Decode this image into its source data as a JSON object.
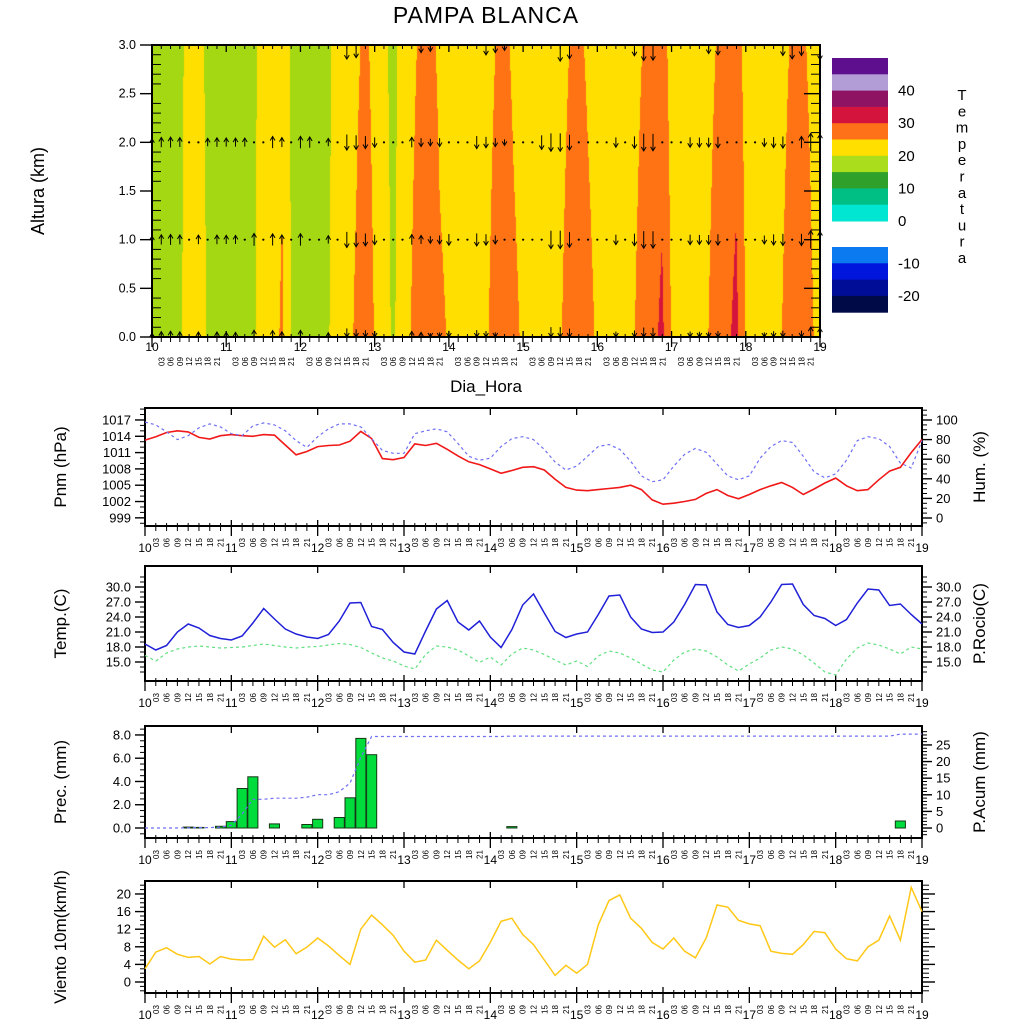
{
  "title": "PAMPA BLANCA",
  "x_axis": {
    "label": "Dia_Hora",
    "days": [
      "10",
      "11",
      "12",
      "13",
      "14",
      "15",
      "16",
      "17",
      "18",
      "19"
    ],
    "hours": [
      "03",
      "06",
      "09",
      "12",
      "15",
      "18",
      "21"
    ],
    "hour_color": "#a53535"
  },
  "colorbar": {
    "title": "Temperatura",
    "labels": [
      "40",
      "30",
      "20",
      "10",
      "0",
      "-10",
      "-20"
    ],
    "colors_upper": [
      "#5e0f8e",
      "#b39dd6",
      "#8e1363",
      "#d4143c",
      "#ff7119",
      "#ffdf00",
      "#aadd1c",
      "#2fa12b",
      "#00bf84",
      "#00e6d2"
    ],
    "colors_lower": [
      "#0b79f0",
      "#0016dc",
      "#000d96",
      "#000a46"
    ]
  },
  "chart_data": [
    {
      "id": "contour",
      "type": "heatmap",
      "ylabel": "Altura (km)",
      "xlabel": "Dia_Hora",
      "xlim": [
        10,
        19
      ],
      "ylim": [
        0,
        3
      ],
      "yticks": [
        "0.0",
        "0.5",
        "1.0",
        "1.5",
        "2.0",
        "2.5",
        "3.0"
      ],
      "levels": [
        15,
        20,
        25,
        30
      ],
      "band_colors": {
        "below": "#2fa12b",
        "green": "#a4d813",
        "yellow": "#ffdf00",
        "orange": "#ff7314",
        "red": "#d4143c"
      },
      "surface_temp": [
        18.0,
        17.2,
        18.0,
        19.5,
        22.0,
        21.5,
        19.6,
        18.4,
        18.2,
        17.6,
        18.4,
        19.7,
        22.3,
        23.0,
        25.9,
        19.5,
        18.3,
        17.7,
        18.6,
        19.8,
        21.8,
        23.0,
        26.0,
        29.5,
        24.5,
        21.0,
        19.6,
        21.5,
        25.5,
        29.3,
        29.6,
        26.0,
        24.6,
        22.5,
        22.0,
        22.8,
        24.0,
        27.5,
        29.2,
        26.2,
        24.3,
        22.6,
        22.2,
        23.0,
        24.4,
        27.6,
        29.0,
        26.5,
        24.4,
        22.8,
        22.4,
        23.2,
        24.8,
        28.0,
        28.5,
        31.2,
        24.8,
        23.0,
        22.6,
        23.4,
        25.0,
        28.2,
        28.8,
        31.5,
        25.0,
        23.2,
        22.8,
        23.6,
        25.2,
        28.4,
        29.4,
        26.2,
        23.0
      ],
      "wind_dir_z1": [
        "uuuu.u.u",
        "uu.u.uu.",
        "u..u.ddd",
        "d...uudd",
        "d..ddd..",
        "...ddd..",
        "..d.ddd.",
        "..dddd..",
        "..ddd.du",
        "u"
      ],
      "wind_dir_z2": [
        "uuuu..uu",
        "uuu..uu.",
        "uu.u.ddd",
        "d...uddd",
        "...dddd.",
        "..dddd..",
        "..d.ddd.",
        "..dddd..",
        "..ddd.uu",
        "u"
      ],
      "wind_dir_z3": [
        "........",
        "........",
        ".....dd.",
        ".....dd.",
        "....ddd.",
        "....dd..",
        "....ddd.",
        "....dd..",
        "....ddd.",
        "d"
      ]
    },
    {
      "id": "pressure_humidity",
      "type": "line",
      "x0": 10,
      "dx": 0.125,
      "left": {
        "label": "Pnm (hPa)",
        "label_color": "#ff0000",
        "ticks": [
          "1017",
          "1014",
          "1011",
          "1008",
          "1005",
          "1002",
          "999"
        ],
        "minor": 1,
        "ylim": [
          997.5,
          1019.2
        ],
        "labels": true
      },
      "right": {
        "label": "Hum. (%)",
        "label_color": "#0000ff",
        "ticks": [
          "100",
          "80",
          "60",
          "40",
          "20",
          "0"
        ],
        "minor": 5,
        "ylim": [
          -8.16,
          112.24
        ],
        "labels": true
      },
      "series": [
        {
          "name": "Pnm (hPa)",
          "axis": "left",
          "color": "#f01818",
          "dash": null,
          "width": 1.6,
          "values": [
            1013.3,
            1013.9,
            1014.7,
            1015.0,
            1014.8,
            1013.8,
            1013.5,
            1014.1,
            1014.3,
            1014.1,
            1014.0,
            1014.3,
            1014.2,
            1012.4,
            1010.6,
            1011.2,
            1012.1,
            1012.3,
            1012.4,
            1013.1,
            1014.9,
            1013.6,
            1009.9,
            1009.7,
            1010.1,
            1012.6,
            1012.3,
            1012.7,
            1011.6,
            1010.4,
            1009.3,
            1008.8,
            1008.0,
            1007.2,
            1007.7,
            1008.3,
            1008.4,
            1007.8,
            1006.1,
            1004.6,
            1004.1,
            1004.0,
            1004.2,
            1004.4,
            1004.6,
            1005.0,
            1004.2,
            1002.3,
            1001.5,
            1001.7,
            1002.0,
            1002.4,
            1003.5,
            1004.2,
            1003.1,
            1002.5,
            1003.3,
            1004.2,
            1004.9,
            1005.5,
            1004.6,
            1003.3,
            1004.3,
            1005.4,
            1006.3,
            1004.9,
            1004.0,
            1004.2,
            1006.0,
            1007.6,
            1008.3,
            1011.0,
            1013.4
          ]
        },
        {
          "name": "Hum. (%)",
          "axis": "right",
          "color": "#7070f5",
          "dash": "3 3",
          "width": 1.2,
          "values": [
            98,
            95,
            88,
            80,
            84,
            92,
            96,
            93,
            86,
            84,
            94,
            97,
            95,
            89,
            79,
            72,
            83,
            91,
            96,
            96,
            93,
            81,
            69,
            66,
            66,
            86,
            89,
            91,
            88,
            76,
            63,
            59,
            61,
            73,
            81,
            83,
            80,
            70,
            57,
            49,
            53,
            63,
            73,
            75,
            70,
            58,
            43,
            37,
            39,
            53,
            65,
            71,
            67,
            55,
            43,
            39,
            43,
            61,
            73,
            79,
            77,
            63,
            47,
            41,
            45,
            59,
            79,
            83,
            81,
            73,
            56,
            51,
            79
          ]
        }
      ]
    },
    {
      "id": "temp_dewpoint",
      "type": "line",
      "x0": 10,
      "dx": 0.125,
      "left": {
        "label": "Temp.(C)",
        "label_color": "#0000ff",
        "ticks": [
          "30.0",
          "27.0",
          "24.0",
          "21.0",
          "18.0",
          "15.0"
        ],
        "minor": 1,
        "ylim": [
          11.2,
          34.2
        ],
        "labels": true
      },
      "right": {
        "label": "P.Rocio(C)",
        "label_color": "#00dd00",
        "ticks": [
          "30.0",
          "27.0",
          "24.0",
          "21.0",
          "18.0",
          "15.0"
        ],
        "minor": 1,
        "ylim": [
          11.2,
          34.2
        ],
        "labels": true
      },
      "series": [
        {
          "name": "Temp.(C)",
          "axis": "left",
          "color": "#2020d8",
          "dash": null,
          "width": 1.5,
          "values": [
            18.6,
            17.4,
            18.3,
            21.0,
            22.6,
            21.8,
            20.3,
            19.7,
            19.4,
            20.2,
            22.8,
            25.7,
            23.6,
            21.6,
            20.6,
            20.0,
            19.7,
            20.5,
            23.2,
            26.8,
            26.9,
            22.1,
            21.5,
            18.9,
            17.0,
            16.6,
            21.2,
            25.6,
            27.3,
            23.0,
            21.4,
            23.2,
            20.0,
            17.9,
            21.5,
            26.4,
            28.6,
            24.8,
            21.1,
            19.9,
            20.6,
            21.0,
            24.5,
            28.2,
            28.4,
            24.0,
            21.6,
            20.9,
            21.0,
            23.0,
            26.5,
            30.5,
            30.4,
            25.0,
            22.5,
            21.9,
            22.3,
            24.0,
            27.0,
            30.5,
            30.6,
            26.5,
            24.3,
            23.7,
            22.3,
            23.5,
            26.8,
            29.6,
            29.4,
            26.3,
            26.6,
            24.5,
            22.6
          ]
        },
        {
          "name": "P.Rocio(C)",
          "axis": "right",
          "color": "#60e080",
          "dash": "3 3",
          "width": 1.2,
          "values": [
            16.3,
            15.2,
            16.8,
            17.6,
            18.0,
            18.2,
            18.0,
            17.8,
            17.9,
            18.0,
            18.3,
            18.6,
            18.3,
            18.0,
            17.8,
            18.0,
            18.1,
            18.4,
            18.7,
            18.5,
            17.9,
            16.8,
            15.8,
            15.2,
            14.2,
            13.6,
            16.5,
            18.2,
            18.0,
            17.4,
            16.2,
            14.9,
            16.0,
            14.4,
            16.6,
            17.8,
            17.4,
            16.5,
            15.4,
            14.4,
            15.2,
            14.1,
            16.2,
            17.2,
            16.8,
            15.8,
            14.6,
            13.4,
            13.0,
            15.4,
            17.0,
            17.6,
            17.2,
            16.0,
            14.4,
            13.2,
            14.6,
            15.8,
            17.4,
            18.0,
            17.6,
            16.4,
            14.8,
            13.0,
            12.4,
            15.6,
            17.8,
            18.8,
            18.4,
            17.6,
            16.6,
            18.0,
            17.6
          ]
        }
      ]
    },
    {
      "id": "precipitation",
      "type": "bar-line",
      "x0": 10,
      "dx": 0.125,
      "left": {
        "label": "Prec. (mm)",
        "label_color": "#00dd00",
        "ticks": [
          "8.0",
          "6.0",
          "4.0",
          "2.0",
          "0.0"
        ],
        "minor": 0.5,
        "ylim": [
          -0.86,
          8.77
        ],
        "labels": true
      },
      "right": {
        "label": "P.Acum (mm)",
        "label_color": "#0000ff",
        "ticks": [
          "25",
          "20",
          "15",
          "10",
          "5",
          "0"
        ],
        "minor": 1,
        "ylim": [
          -3.0,
          30.7
        ],
        "labels": true
      },
      "bars": {
        "name": "Prec. (mm)",
        "color": "#00dc3c",
        "stroke": "#143814",
        "values": [
          0,
          0,
          0,
          0,
          0.08,
          0.05,
          0,
          0.15,
          0.55,
          3.4,
          4.4,
          0,
          0.35,
          0,
          0,
          0.3,
          0.75,
          0,
          0.9,
          2.6,
          7.7,
          6.3,
          0,
          0,
          0,
          0,
          0,
          0,
          0,
          0,
          0,
          0,
          0,
          0,
          0.12,
          0,
          0,
          0,
          0,
          0,
          0,
          0,
          0,
          0,
          0,
          0,
          0,
          0,
          0,
          0,
          0,
          0,
          0,
          0,
          0,
          0,
          0,
          0,
          0,
          0,
          0,
          0,
          0,
          0,
          0,
          0,
          0,
          0,
          0,
          0,
          0.6,
          0,
          0
        ]
      },
      "acum": {
        "name": "P.Acum (mm)",
        "color": "#7070f5",
        "dash": "3 3",
        "width": 1.2
      }
    },
    {
      "id": "wind10m",
      "type": "line",
      "x0": 10,
      "dx": 0.125,
      "left": {
        "label": "Viento 10m(km/h)",
        "label_color": "#ffc400",
        "ticks": [
          "20",
          "16",
          "12",
          "8",
          "4",
          "0"
        ],
        "minor": 1,
        "ylim": [
          -2.5,
          22.95
        ],
        "labels": true
      },
      "right": {
        "label": "",
        "label_color": "#000000",
        "ticks": [
          "20",
          "16",
          "12",
          "8",
          "4",
          "0"
        ],
        "minor": 1,
        "ylim": [
          -2.5,
          22.95
        ],
        "labels": false
      },
      "series": [
        {
          "name": "Viento 10m(km/h)",
          "axis": "left",
          "color": "#ffc817",
          "dash": null,
          "width": 1.5,
          "values": [
            3.0,
            6.8,
            7.8,
            6.3,
            5.6,
            5.8,
            4.1,
            5.8,
            5.2,
            5.0,
            5.1,
            10.4,
            7.9,
            9.6,
            6.4,
            7.9,
            10.0,
            8.2,
            6.0,
            4.0,
            12.0,
            15.2,
            13.0,
            10.6,
            7.0,
            4.5,
            5.0,
            9.5,
            7.2,
            5.0,
            3.0,
            4.8,
            9.0,
            13.8,
            14.5,
            10.8,
            8.5,
            5.0,
            1.5,
            3.8,
            2.0,
            4.0,
            13.0,
            18.5,
            19.8,
            14.5,
            12.2,
            9.0,
            7.5,
            10.0,
            7.0,
            5.5,
            10.0,
            17.5,
            17.0,
            14.0,
            13.2,
            12.8,
            7.0,
            6.5,
            6.3,
            8.5,
            11.5,
            11.2,
            7.5,
            5.3,
            4.8,
            8.0,
            9.5,
            15.0,
            9.5,
            21.5,
            16.0
          ]
        }
      ]
    }
  ]
}
